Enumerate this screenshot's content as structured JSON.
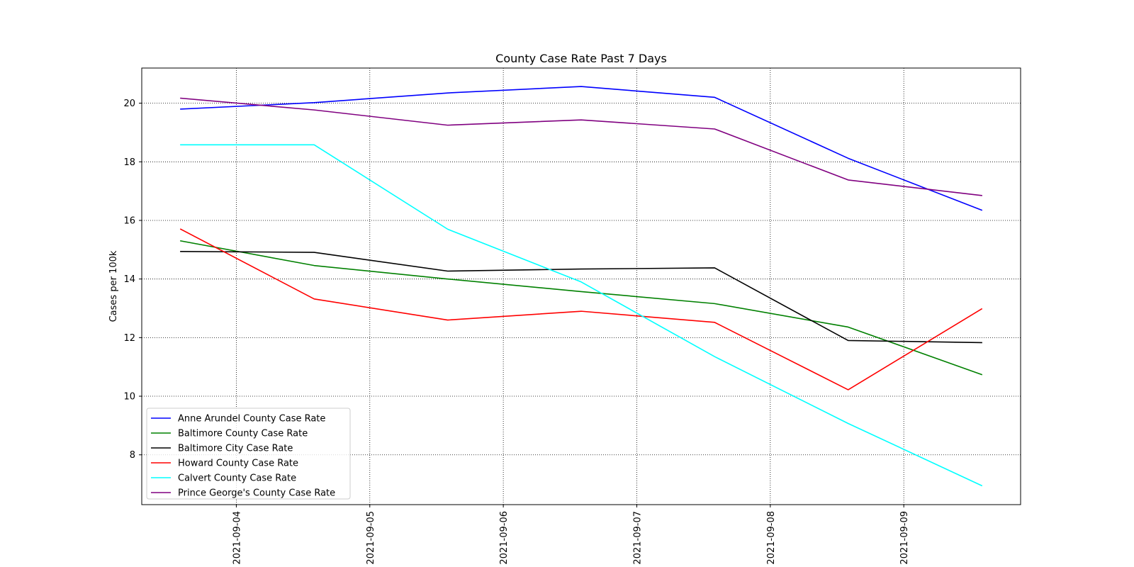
{
  "chart_data": {
    "type": "line",
    "title": "County Case Rate Past 7 Days",
    "xlabel": "",
    "ylabel": "Cases per 100k",
    "x": [
      "2021-09-03T14:00",
      "2021-09-04T14:00",
      "2021-09-05T14:00",
      "2021-09-06T14:00",
      "2021-09-07T14:00",
      "2021-09-08T14:00",
      "2021-09-09T14:00"
    ],
    "xlim": [
      "2021-09-03T07:00",
      "2021-09-09T21:00"
    ],
    "x_ticks": [
      "2021-09-04",
      "2021-09-05",
      "2021-09-06",
      "2021-09-07",
      "2021-09-08",
      "2021-09-09"
    ],
    "ylim": [
      6.3,
      21.2
    ],
    "y_ticks": [
      8,
      10,
      12,
      14,
      16,
      18,
      20
    ],
    "grid": true,
    "grid_style": "dotted",
    "legend_position": "lower-left",
    "series": [
      {
        "name": "Anne Arundel County Case Rate",
        "color": "#0000ff",
        "values": [
          19.8,
          20.02,
          20.35,
          20.57,
          20.2,
          18.12,
          16.35
        ]
      },
      {
        "name": "Baltimore County Case Rate",
        "color": "#008000",
        "values": [
          15.3,
          14.46,
          14.0,
          13.57,
          13.16,
          12.36,
          10.74
        ]
      },
      {
        "name": "Baltimore City Case Rate",
        "color": "#000000",
        "values": [
          14.94,
          14.91,
          14.27,
          14.34,
          14.38,
          11.9,
          11.83
        ]
      },
      {
        "name": "Howard County Case Rate",
        "color": "#ff0000",
        "values": [
          15.7,
          13.32,
          12.6,
          12.9,
          12.52,
          10.22,
          12.98
        ]
      },
      {
        "name": "Calvert County Case Rate",
        "color": "#00ffff",
        "values": [
          18.58,
          18.58,
          15.7,
          13.9,
          11.35,
          9.07,
          6.95
        ]
      },
      {
        "name": "Prince George's County Case Rate",
        "color": "#800080",
        "values": [
          20.17,
          19.77,
          19.25,
          19.43,
          19.12,
          17.38,
          16.85
        ]
      }
    ]
  }
}
